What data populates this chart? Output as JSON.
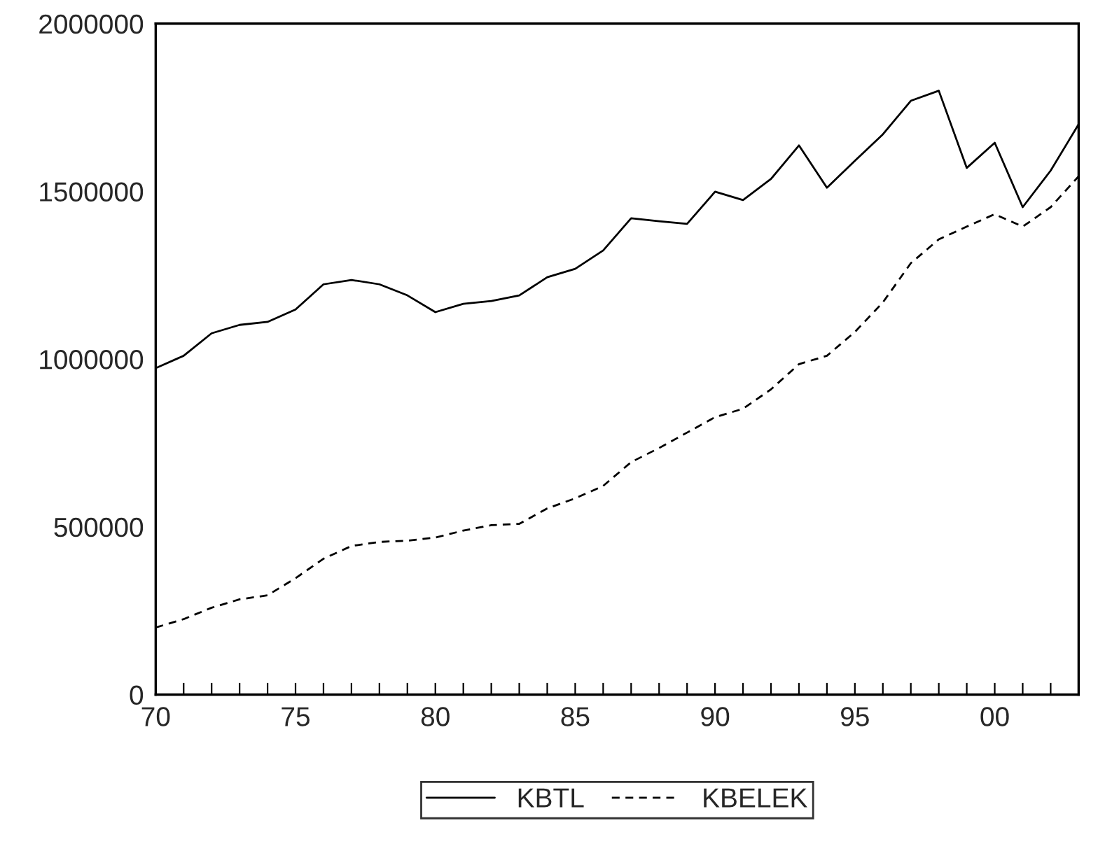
{
  "chart_data": {
    "type": "line",
    "x": [
      1970,
      1971,
      1972,
      1973,
      1974,
      1975,
      1976,
      1977,
      1978,
      1979,
      1980,
      1981,
      1982,
      1983,
      1984,
      1985,
      1986,
      1987,
      1988,
      1989,
      1990,
      1991,
      1992,
      1993,
      1994,
      1995,
      1996,
      1997,
      1998,
      1999,
      2000,
      2001,
      2002,
      2003
    ],
    "series": [
      {
        "name": "KBTL",
        "color": "#000000",
        "line_style": "solid",
        "values": [
          973000,
          1010000,
          1077000,
          1102000,
          1111000,
          1148000,
          1223000,
          1236000,
          1223000,
          1190000,
          1140000,
          1165000,
          1173000,
          1190000,
          1244000,
          1269000,
          1324000,
          1420000,
          1411000,
          1403000,
          1499000,
          1474000,
          1537000,
          1637000,
          1511000,
          1591000,
          1670000,
          1770000,
          1800000,
          1570000,
          1645000,
          1453000,
          1562000,
          1700000
        ]
      },
      {
        "name": "KBELEK",
        "color": "#000000",
        "line_style": "dashed",
        "values": [
          200000,
          225000,
          259000,
          284000,
          296000,
          347000,
          405000,
          443000,
          455000,
          459000,
          468000,
          489000,
          505000,
          509000,
          555000,
          585000,
          622000,
          693000,
          735000,
          781000,
          827000,
          852000,
          910000,
          985000,
          1010000,
          1081000,
          1169000,
          1286000,
          1357000,
          1395000,
          1432000,
          1395000,
          1453000,
          1545000
        ]
      }
    ],
    "xlim": [
      1970,
      2003
    ],
    "xticks": [
      {
        "value": 1970,
        "label": "70"
      },
      {
        "value": 1971,
        "label": null
      },
      {
        "value": 1972,
        "label": null
      },
      {
        "value": 1973,
        "label": null
      },
      {
        "value": 1974,
        "label": null
      },
      {
        "value": 1975,
        "label": "75"
      },
      {
        "value": 1976,
        "label": null
      },
      {
        "value": 1977,
        "label": null
      },
      {
        "value": 1978,
        "label": null
      },
      {
        "value": 1979,
        "label": null
      },
      {
        "value": 1980,
        "label": "80"
      },
      {
        "value": 1981,
        "label": null
      },
      {
        "value": 1982,
        "label": null
      },
      {
        "value": 1983,
        "label": null
      },
      {
        "value": 1984,
        "label": null
      },
      {
        "value": 1985,
        "label": "85"
      },
      {
        "value": 1986,
        "label": null
      },
      {
        "value": 1987,
        "label": null
      },
      {
        "value": 1988,
        "label": null
      },
      {
        "value": 1989,
        "label": null
      },
      {
        "value": 1990,
        "label": "90"
      },
      {
        "value": 1991,
        "label": null
      },
      {
        "value": 1992,
        "label": null
      },
      {
        "value": 1993,
        "label": null
      },
      {
        "value": 1994,
        "label": null
      },
      {
        "value": 1995,
        "label": "95"
      },
      {
        "value": 1996,
        "label": null
      },
      {
        "value": 1997,
        "label": null
      },
      {
        "value": 1998,
        "label": null
      },
      {
        "value": 1999,
        "label": null
      },
      {
        "value": 2000,
        "label": "00"
      },
      {
        "value": 2001,
        "label": null
      },
      {
        "value": 2002,
        "label": null
      },
      {
        "value": 2003,
        "label": null
      }
    ],
    "ylim": [
      0,
      2000000
    ],
    "yticks": [
      0,
      500000,
      1000000,
      1500000,
      2000000
    ],
    "grid": false,
    "legend": "bottom"
  }
}
